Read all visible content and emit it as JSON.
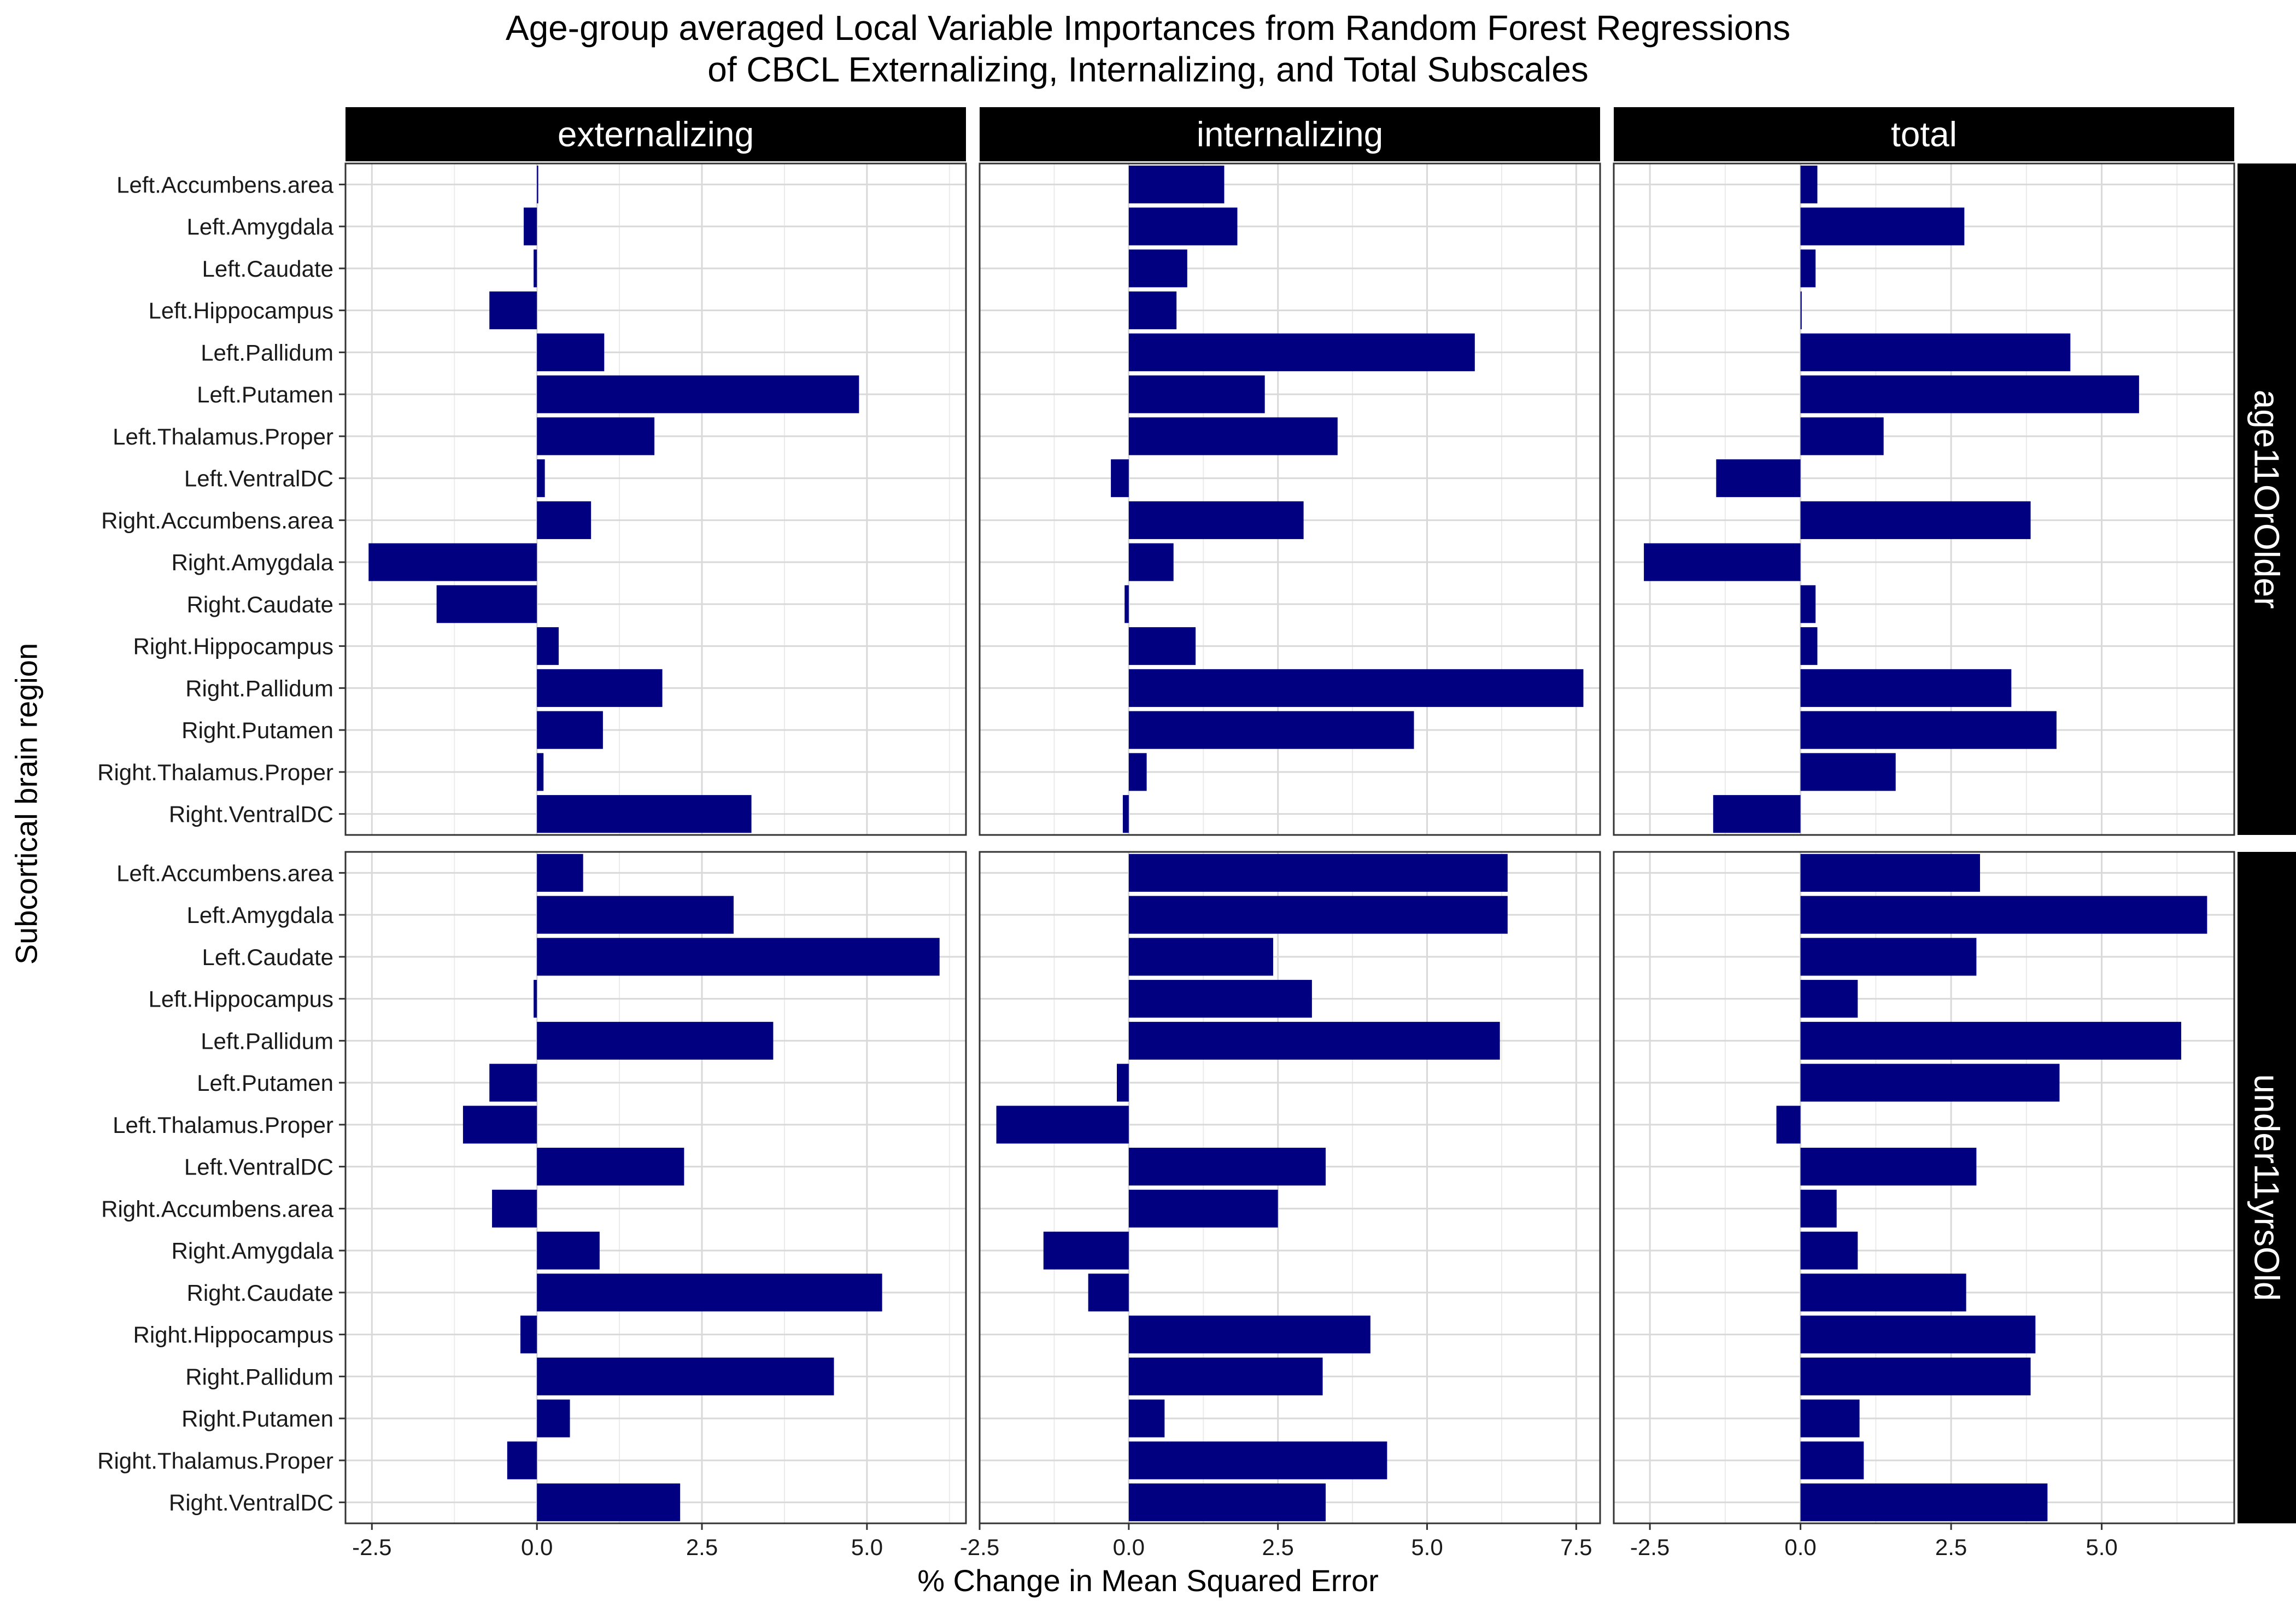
{
  "chart_data": {
    "type": "bar",
    "orientation": "horizontal",
    "title": "Age-group averaged Local Variable Importances from Random Forest Regressions\nof CBCL Externalizing, Internalizing, and Total Subscales",
    "title_lines": [
      "Age-group averaged Local Variable Importances from Random Forest Regressions",
      "of CBCL Externalizing, Internalizing, and Total Subscales"
    ],
    "xlabel": "% Change in Mean Squared Error",
    "ylabel": "Subcortical brain region",
    "bar_color": "#000080",
    "grid": true,
    "categories": [
      "Left.Accumbens.area",
      "Left.Amygdala",
      "Left.Caudate",
      "Left.Hippocampus",
      "Left.Pallidum",
      "Left.Putamen",
      "Left.Thalamus.Proper",
      "Left.VentralDC",
      "Right.Accumbens.area",
      "Right.Amygdala",
      "Right.Caudate",
      "Right.Hippocampus",
      "Right.Pallidum",
      "Right.Putamen",
      "Right.Thalamus.Proper",
      "Right.VentralDC"
    ],
    "facet_columns": [
      "externalizing",
      "internalizing",
      "total"
    ],
    "facet_rows": [
      "age11OrOlder",
      "under11yrsOld"
    ],
    "columns": [
      {
        "name": "externalizing",
        "xlim": [
          -2.9,
          6.5
        ],
        "xticks": [
          -2.5,
          0,
          2.5,
          5
        ],
        "xtick_labels": [
          "-2.5",
          "0.0",
          "2.5",
          "5.0"
        ]
      },
      {
        "name": "internalizing",
        "xlim": [
          -2.5,
          7.9
        ],
        "xticks": [
          -2.5,
          0,
          2.5,
          5,
          7.5
        ],
        "xtick_labels": [
          "-2.5",
          "0.0",
          "2.5",
          "5.0",
          "7.5"
        ]
      },
      {
        "name": "total",
        "xlim": [
          -3.1,
          7.2
        ],
        "xticks": [
          -2.5,
          0,
          2.5,
          5
        ],
        "xtick_labels": [
          "-2.5",
          "0.0",
          "2.5",
          "5.0"
        ]
      }
    ],
    "panels": [
      {
        "row": "age11OrOlder",
        "column": "externalizing",
        "values": [
          0.02,
          -0.2,
          -0.05,
          -0.72,
          1.02,
          4.88,
          1.78,
          0.12,
          0.82,
          -2.55,
          -1.52,
          0.33,
          1.9,
          1.0,
          0.1,
          3.25
        ]
      },
      {
        "row": "age11OrOlder",
        "column": "internalizing",
        "values": [
          1.6,
          1.82,
          0.98,
          0.8,
          5.8,
          2.28,
          3.5,
          -0.3,
          2.93,
          0.75,
          -0.07,
          1.12,
          7.62,
          4.78,
          0.3,
          -0.1
        ]
      },
      {
        "row": "age11OrOlder",
        "column": "total",
        "values": [
          0.28,
          2.72,
          0.25,
          0.02,
          4.48,
          5.62,
          1.38,
          -1.4,
          3.82,
          -2.6,
          0.25,
          0.28,
          3.5,
          4.25,
          1.58,
          -1.45
        ]
      },
      {
        "row": "under11yrsOld",
        "column": "externalizing",
        "values": [
          0.7,
          2.98,
          6.1,
          -0.05,
          3.58,
          -0.72,
          -1.12,
          2.23,
          -0.68,
          0.95,
          5.23,
          -0.25,
          4.5,
          0.5,
          -0.45,
          2.17
        ]
      },
      {
        "row": "under11yrsOld",
        "column": "internalizing",
        "values": [
          6.35,
          6.35,
          2.42,
          3.07,
          6.22,
          -0.2,
          -2.22,
          3.3,
          2.5,
          -1.43,
          -0.68,
          4.05,
          3.25,
          0.6,
          4.33,
          3.3
        ]
      },
      {
        "row": "under11yrsOld",
        "column": "total",
        "values": [
          2.98,
          6.75,
          2.92,
          0.95,
          6.32,
          4.3,
          -0.4,
          2.92,
          0.6,
          0.95,
          2.75,
          3.9,
          3.82,
          0.98,
          1.05,
          4.1
        ]
      }
    ]
  }
}
